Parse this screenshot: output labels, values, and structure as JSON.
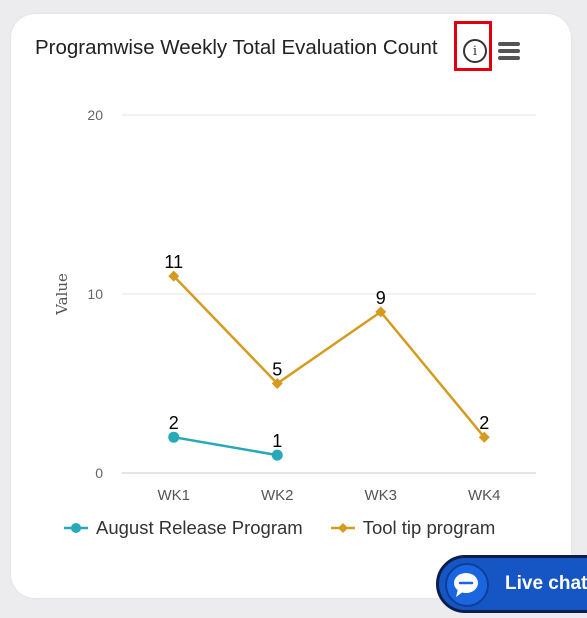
{
  "chart_data": {
    "type": "line",
    "title": "Programwise Weekly Total Evaluation Count",
    "ylabel": "Value",
    "xlabel": "",
    "categories": [
      "WK1",
      "WK2",
      "WK3",
      "WK4"
    ],
    "ylim": [
      0,
      20
    ],
    "yticks": [
      0,
      10,
      20
    ],
    "grid": true,
    "legend_position": "bottom",
    "series": [
      {
        "name": "August Release Program",
        "values": [
          2,
          1,
          null,
          null
        ],
        "color": "#26a9b8",
        "marker": "circle"
      },
      {
        "name": "Tool tip program",
        "values": [
          11,
          5,
          9,
          2
        ],
        "color": "#d59b1e",
        "marker": "diamond"
      }
    ]
  },
  "header": {
    "info_icon": "info-icon",
    "menu_icon": "hamburger-menu-icon",
    "info_glyph": "i"
  },
  "live_chat": {
    "label": "Live chat",
    "icon": "chat-bubble-icon",
    "color": "#1556c4"
  }
}
